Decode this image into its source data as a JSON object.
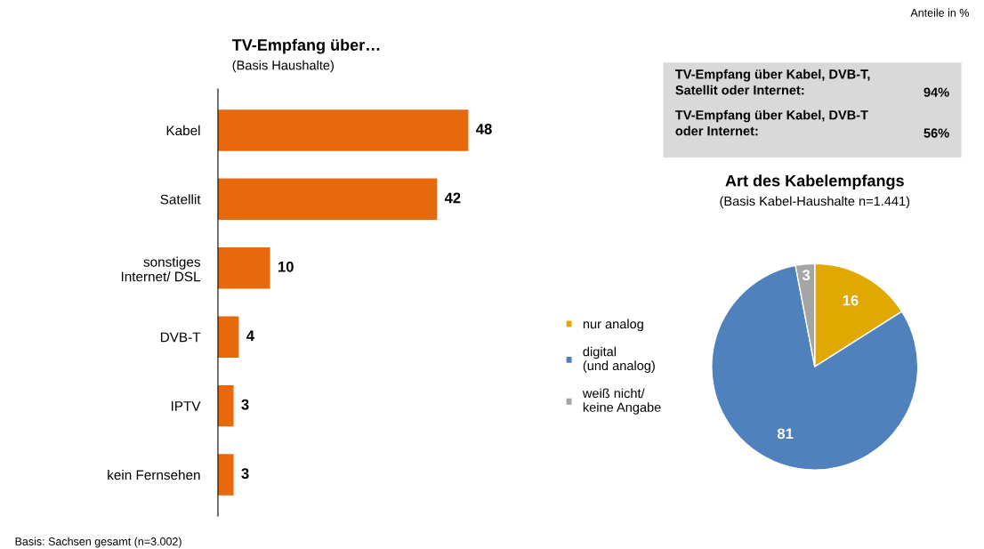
{
  "chart_data": [
    {
      "type": "bar",
      "orientation": "horizontal",
      "title": "TV-Empfang über…",
      "subtitle": "(Basis Haushalte)",
      "categories": [
        "Kabel",
        "Satellit",
        "sonstiges\nInternet/ DSL",
        "DVB-T",
        "IPTV",
        "kein Fernsehen"
      ],
      "values": [
        48,
        42,
        10,
        4,
        3,
        3
      ],
      "color": "#e8680c",
      "data_labels": true,
      "annotations": [
        "Anteile in %",
        "Basis: Sachsen gesamt (n=3.002)"
      ]
    },
    {
      "type": "other",
      "annotations": [
        "TV-Empfang über Kabel, DVB-T,\nSatellit oder Internet:",
        "94%",
        "TV-Empfang über Kabel, DVB-T\noder Internet:",
        "56%"
      ]
    },
    {
      "type": "pie",
      "title": "Art des Kabelempfangs",
      "subtitle": "(Basis Kabel-Haushalte n=1.441)",
      "categories": [
        "nur analog",
        "digital\n(und analog)",
        "weiß nicht/\nkeine Angabe"
      ],
      "values": [
        16,
        81,
        3
      ],
      "colors": [
        "#e0a800",
        "#4f81bd",
        "#a5a5a5"
      ],
      "data_labels": true,
      "legend": "left"
    }
  ]
}
